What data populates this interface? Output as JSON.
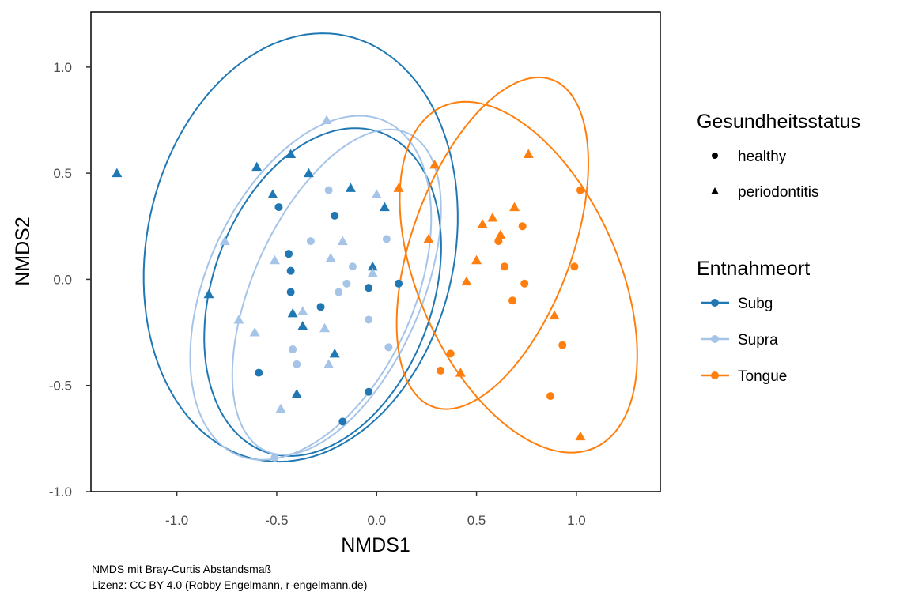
{
  "chart_data": {
    "type": "scatter",
    "xlabel": "NMDS1",
    "ylabel": "NMDS2",
    "xlim": [
      -1.43,
      1.42
    ],
    "ylim": [
      -1.0,
      1.26
    ],
    "xticks": [
      -1.0,
      -0.5,
      0.0,
      0.5,
      1.0
    ],
    "xtick_labels": [
      "-1.0",
      "-0.5",
      "0.0",
      "0.5",
      "1.0"
    ],
    "yticks": [
      -1.0,
      -0.5,
      0.0,
      0.5,
      1.0
    ],
    "ytick_labels": [
      "-1.0",
      "-0.5",
      "0.0",
      "0.5",
      "1.0"
    ],
    "grid": false,
    "caption": [
      "NMDS mit Bray-Curtis Abstandsmaß",
      "Lizenz: CC BY 4.0 (Robby Engelmann, r-engelmann.de)"
    ],
    "legend_placement": "right",
    "legends": [
      {
        "title": "Gesundheitsstatus",
        "entries": [
          {
            "label": "healthy",
            "shape": "circle"
          },
          {
            "label": "periodontitis",
            "shape": "triangle"
          }
        ]
      },
      {
        "title": "Entnahmeort",
        "entries": [
          {
            "label": "Subg",
            "color": "#1f78b4"
          },
          {
            "label": "Supra",
            "color": "#a6c4e8"
          },
          {
            "label": "Tongue",
            "color": "#ff7f0e"
          }
        ]
      }
    ],
    "series": [
      {
        "name": "Subg",
        "status": "periodontitis",
        "shape": "triangle",
        "color": "#1f78b4",
        "points": [
          [
            -1.3,
            0.5
          ],
          [
            -0.6,
            0.53
          ],
          [
            -0.43,
            0.59
          ],
          [
            -0.34,
            0.5
          ],
          [
            -0.52,
            0.4
          ],
          [
            -0.13,
            0.43
          ],
          [
            0.04,
            0.34
          ],
          [
            -0.02,
            0.06
          ],
          [
            -0.84,
            -0.07
          ],
          [
            -0.42,
            -0.16
          ],
          [
            -0.37,
            -0.22
          ],
          [
            -0.21,
            -0.35
          ],
          [
            -0.4,
            -0.54
          ]
        ]
      },
      {
        "name": "Subg",
        "status": "healthy",
        "shape": "circle",
        "color": "#1f78b4",
        "points": [
          [
            -0.49,
            0.34
          ],
          [
            -0.21,
            0.3
          ],
          [
            -0.44,
            0.12
          ],
          [
            -0.43,
            0.04
          ],
          [
            -0.43,
            -0.06
          ],
          [
            -0.28,
            -0.13
          ],
          [
            -0.04,
            -0.04
          ],
          [
            0.11,
            -0.02
          ],
          [
            -0.59,
            -0.44
          ],
          [
            -0.04,
            -0.53
          ],
          [
            -0.17,
            -0.67
          ]
        ]
      },
      {
        "name": "Supra",
        "status": "periodontitis",
        "shape": "triangle",
        "color": "#a6c4e8",
        "points": [
          [
            -0.25,
            0.75
          ],
          [
            0.0,
            0.4
          ],
          [
            -0.76,
            0.18
          ],
          [
            -0.17,
            0.18
          ],
          [
            -0.51,
            0.09
          ],
          [
            -0.23,
            0.1
          ],
          [
            -0.02,
            0.03
          ],
          [
            -0.37,
            -0.15
          ],
          [
            -0.69,
            -0.19
          ],
          [
            -0.61,
            -0.25
          ],
          [
            -0.26,
            -0.23
          ],
          [
            -0.24,
            -0.4
          ],
          [
            -0.48,
            -0.61
          ]
        ]
      },
      {
        "name": "Supra",
        "status": "healthy",
        "shape": "circle",
        "color": "#a6c4e8",
        "points": [
          [
            -0.24,
            0.42
          ],
          [
            -0.33,
            0.18
          ],
          [
            0.05,
            0.19
          ],
          [
            -0.12,
            0.06
          ],
          [
            -0.15,
            -0.02
          ],
          [
            -0.19,
            -0.06
          ],
          [
            -0.04,
            -0.19
          ],
          [
            -0.42,
            -0.33
          ],
          [
            0.06,
            -0.32
          ],
          [
            -0.4,
            -0.4
          ],
          [
            -0.51,
            -0.84
          ]
        ]
      },
      {
        "name": "Tongue",
        "status": "periodontitis",
        "shape": "triangle",
        "color": "#ff7f0e",
        "points": [
          [
            0.11,
            0.43
          ],
          [
            0.29,
            0.54
          ],
          [
            0.76,
            0.59
          ],
          [
            0.69,
            0.34
          ],
          [
            0.58,
            0.29
          ],
          [
            0.53,
            0.26
          ],
          [
            0.62,
            0.21
          ],
          [
            0.26,
            0.19
          ],
          [
            0.5,
            0.09
          ],
          [
            0.45,
            -0.01
          ],
          [
            0.89,
            -0.17
          ],
          [
            0.42,
            -0.44
          ],
          [
            1.02,
            -0.74
          ]
        ]
      },
      {
        "name": "Tongue",
        "status": "healthy",
        "shape": "circle",
        "color": "#ff7f0e",
        "points": [
          [
            1.02,
            0.42
          ],
          [
            0.73,
            0.25
          ],
          [
            0.61,
            0.18
          ],
          [
            0.64,
            0.06
          ],
          [
            0.99,
            0.06
          ],
          [
            0.74,
            -0.02
          ],
          [
            0.68,
            -0.1
          ],
          [
            0.93,
            -0.31
          ],
          [
            0.37,
            -0.35
          ],
          [
            0.32,
            -0.43
          ],
          [
            0.87,
            -0.55
          ]
        ]
      }
    ],
    "ellipses": [
      {
        "group": "Subg",
        "status": "periodontitis",
        "color": "#1f78b4",
        "center": [
          -0.38,
          0.15
        ],
        "rx": 0.77,
        "ry": 1.02,
        "tilt_deg": -12
      },
      {
        "group": "Subg",
        "status": "healthy",
        "color": "#1f78b4",
        "center": [
          -0.27,
          -0.06
        ],
        "rx": 0.55,
        "ry": 0.8,
        "tilt_deg": -20
      },
      {
        "group": "Supra",
        "status": "periodontitis",
        "color": "#a6c4e8",
        "center": [
          -0.33,
          -0.04
        ],
        "rx": 0.52,
        "ry": 0.86,
        "tilt_deg": -24
      },
      {
        "group": "Supra",
        "status": "healthy",
        "color": "#a6c4e8",
        "center": [
          -0.2,
          -0.06
        ],
        "rx": 0.42,
        "ry": 0.82,
        "tilt_deg": -24
      },
      {
        "group": "Tongue",
        "status": "periodontitis",
        "color": "#ff7f0e",
        "center": [
          0.58,
          0.17
        ],
        "rx": 0.4,
        "ry": 0.82,
        "tilt_deg": -20
      },
      {
        "group": "Tongue",
        "status": "healthy",
        "color": "#ff7f0e",
        "center": [
          0.71,
          0.01
        ],
        "rx": 0.5,
        "ry": 0.88,
        "tilt_deg": 24
      }
    ]
  }
}
